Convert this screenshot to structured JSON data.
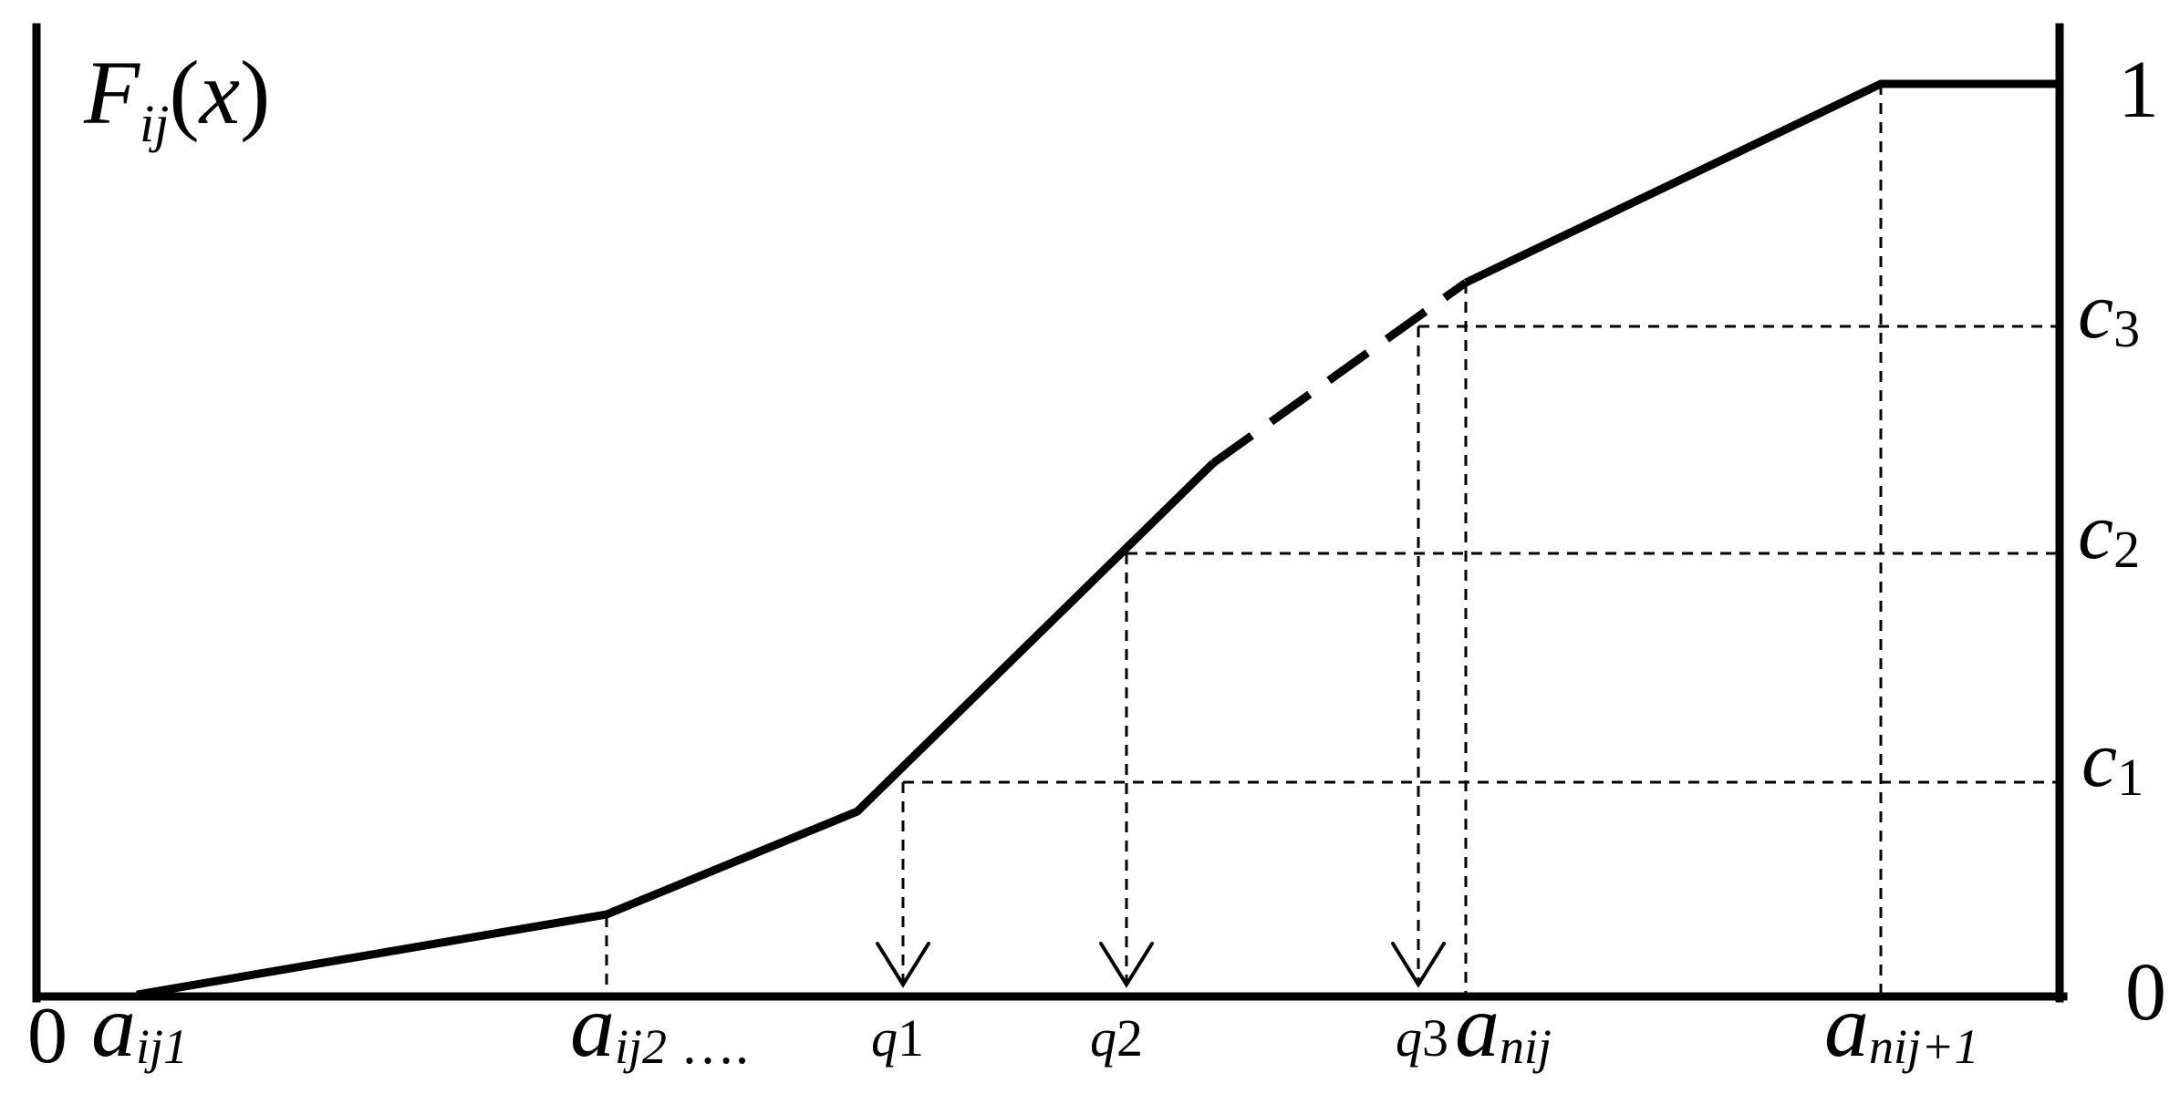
{
  "colors": {
    "ink": "#000000",
    "background": "#ffffff"
  },
  "axis_title": {
    "symbol": "F",
    "subscript": "ij",
    "argument_open": "(",
    "argument": "x",
    "argument_close": ")"
  },
  "origin_label": "0",
  "right_axis": {
    "top": "1",
    "bottom": "0"
  },
  "level_labels": [
    {
      "letter": "c",
      "index": "3"
    },
    {
      "letter": "c",
      "index": "2"
    },
    {
      "letter": "c",
      "index": "1"
    }
  ],
  "x_labels": {
    "a1": {
      "letter": "a",
      "sub": "ij1"
    },
    "a2": {
      "letter": "a",
      "sub": "ij2",
      "suffix": " …."
    },
    "an": {
      "letter": "a",
      "sub": "nij"
    },
    "an1": {
      "letter": "a",
      "sub": "nij+1"
    }
  },
  "quantile_labels": [
    {
      "letter": "q",
      "index": "1"
    },
    {
      "letter": "q",
      "index": "2"
    },
    {
      "letter": "q",
      "index": "3"
    }
  ]
}
